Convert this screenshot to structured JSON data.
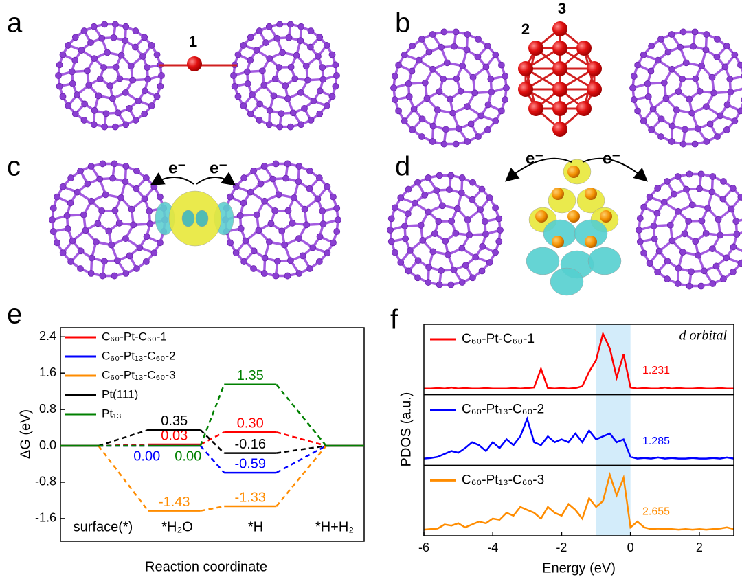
{
  "panels": {
    "labels": [
      "a",
      "b",
      "c",
      "d",
      "e",
      "f"
    ],
    "sites": [
      "1",
      "2",
      "3"
    ],
    "electron": "e⁻"
  },
  "chart_data": [
    {
      "type": "levels",
      "ylabel": "ΔG (eV)",
      "xlabel": "Reaction coordinate",
      "categories": [
        "surface(*)",
        "*H₂O",
        "*H",
        "*H+H₂"
      ],
      "ylim": [
        -2.1,
        2.6
      ],
      "yticks": [
        -1.6,
        -0.8,
        {
          "value": 0,
          "label": "0.0"
        },
        0.8,
        1.6,
        2.4
      ],
      "series": [
        {
          "name": "C₆₀-Pt-C₆₀-1",
          "color": "#ff0000",
          "values": [
            0,
            0.03,
            0.3,
            0
          ],
          "value_labels": [
            null,
            "0.03",
            "0.30",
            null
          ]
        },
        {
          "name": "C₆₀-Pt₁₃-C₆₀-2",
          "color": "#0000ff",
          "values": [
            0,
            0,
            -0.59,
            0
          ],
          "value_labels": [
            null,
            "0.00",
            "-0.59",
            null
          ]
        },
        {
          "name": "C₆₀-Pt₁₃-C₆₀-3",
          "color": "#ff8c00",
          "values": [
            0,
            -1.43,
            -1.33,
            0
          ],
          "value_labels": [
            null,
            "-1.43",
            "-1.33",
            null
          ]
        },
        {
          "name": "Pt(111)",
          "color": "#000000",
          "values": [
            0,
            0.35,
            -0.16,
            0
          ],
          "value_labels": [
            null,
            "0.35",
            "-0.16",
            null
          ]
        },
        {
          "name": "Pt₁₃",
          "color": "#008000",
          "values": [
            0,
            0,
            1.35,
            0
          ],
          "value_labels": [
            null,
            "0.00",
            "1.35",
            null
          ]
        }
      ]
    },
    {
      "type": "line",
      "ylabel": "PDOS (a.u.)",
      "xlabel": "Energy (eV)",
      "annotation": "d orbital",
      "xlim": [
        -6,
        3
      ],
      "xticks": [
        -6,
        -4,
        -2,
        0,
        2
      ],
      "highlight": [
        -1,
        0
      ],
      "highlight_color": "#d3ecfa",
      "x": [
        -6,
        -5.8,
        -5.6,
        -5.4,
        -5.2,
        -5,
        -4.8,
        -4.6,
        -4.4,
        -4.2,
        -4,
        -3.8,
        -3.6,
        -3.4,
        -3.2,
        -3,
        -2.8,
        -2.6,
        -2.4,
        -2.2,
        -2,
        -1.8,
        -1.6,
        -1.4,
        -1.2,
        -1,
        -0.8,
        -0.6,
        -0.4,
        -0.2,
        0,
        0.2,
        0.4,
        0.6,
        0.8,
        1,
        1.2,
        1.4,
        1.6,
        1.8,
        2,
        2.2,
        2.4,
        2.6,
        2.8,
        3
      ],
      "series": [
        {
          "name": "C₆₀-Pt-C₆₀-1",
          "color": "#ff0000",
          "label": "1.231",
          "values": [
            0.01,
            0.01,
            0.02,
            0.01,
            0.03,
            0.01,
            0.02,
            0.01,
            0.01,
            0.02,
            0.01,
            0.01,
            0.01,
            0.02,
            0.01,
            0.02,
            0.03,
            0.35,
            0.02,
            0.01,
            0.02,
            0.01,
            0.02,
            0.05,
            0.3,
            0.5,
            0.95,
            0.7,
            0.2,
            0.6,
            0.03,
            0.01,
            0.02,
            0.01,
            0.01,
            0.03,
            0.01,
            0.02,
            0.01,
            0.01,
            0.02,
            0.01,
            0.01,
            0.02,
            0.01,
            0.01
          ]
        },
        {
          "name": "C₆₀-Pt₁₃-C₆₀-2",
          "color": "#0000ff",
          "label": "1.285",
          "values": [
            0.02,
            0.03,
            0.05,
            0.1,
            0.15,
            0.12,
            0.2,
            0.3,
            0.25,
            0.15,
            0.3,
            0.2,
            0.35,
            0.25,
            0.4,
            0.7,
            0.3,
            0.25,
            0.4,
            0.3,
            0.35,
            0.3,
            0.45,
            0.3,
            0.5,
            0.35,
            0.4,
            0.45,
            0.3,
            0.35,
            0.05,
            0.02,
            0.03,
            0.02,
            0.04,
            0.02,
            0.03,
            0.02,
            0.02,
            0.03,
            0.02,
            0.02,
            0.03,
            0.02,
            0.04,
            0.02
          ]
        },
        {
          "name": "C₆₀-Pt₁₃-C₆₀-3",
          "color": "#ff8c00",
          "label": "2.655",
          "values": [
            0.01,
            0.02,
            0.03,
            0.1,
            0.08,
            0.12,
            0.05,
            0.1,
            0.15,
            0.12,
            0.2,
            0.18,
            0.3,
            0.25,
            0.4,
            0.35,
            0.3,
            0.2,
            0.4,
            0.3,
            0.25,
            0.45,
            0.35,
            0.2,
            0.55,
            0.4,
            0.5,
            0.95,
            0.6,
            0.9,
            0.05,
            0.15,
            0.05,
            0.02,
            0.03,
            0.02,
            0.02,
            0.01,
            0.02,
            0.01,
            0.02,
            0.01,
            0.02,
            0.03,
            0.05,
            0.02
          ]
        }
      ]
    }
  ]
}
